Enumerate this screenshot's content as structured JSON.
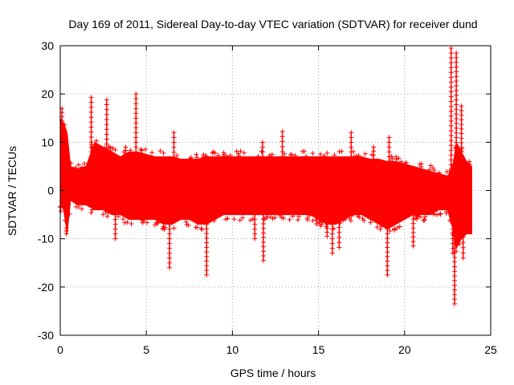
{
  "chart_data": {
    "type": "scatter",
    "title": "Day 169 of 2011, Sidereal Day-to-day VTEC variation (SDTVAR) for receiver dund",
    "xlabel": "GPS time / hours",
    "ylabel": "SDTVAR / TECUs",
    "xlim": [
      0,
      25
    ],
    "ylim": [
      -30,
      30
    ],
    "xticks": [
      0,
      5,
      10,
      15,
      20,
      25
    ],
    "yticks": [
      -30,
      -20,
      -10,
      0,
      10,
      20,
      30
    ],
    "grid": true,
    "marker": "+",
    "color": "#ff0000",
    "series": [
      {
        "name": "SDTVAR",
        "band": {
          "x": [
            0.0,
            0.2,
            0.4,
            0.6,
            1.0,
            1.5,
            2.0,
            2.5,
            3.0,
            3.5,
            4.0,
            4.5,
            5.0,
            5.5,
            6.0,
            6.5,
            7.0,
            7.5,
            8.0,
            8.5,
            9.0,
            9.5,
            10.0,
            10.5,
            11.0,
            11.5,
            12.0,
            12.5,
            13.0,
            13.5,
            14.0,
            14.5,
            15.0,
            15.5,
            16.0,
            16.5,
            17.0,
            17.5,
            18.0,
            18.5,
            19.0,
            19.5,
            20.0,
            20.5,
            21.0,
            21.5,
            22.0,
            22.5,
            22.8,
            23.0,
            23.3,
            23.6,
            23.9
          ],
          "upper": [
            15,
            14,
            12,
            5,
            4.5,
            5,
            10,
            9,
            8,
            7,
            8,
            8,
            7.5,
            7,
            7,
            7,
            6.5,
            6.5,
            6.5,
            7,
            7,
            7,
            7,
            7,
            7,
            7,
            7,
            7,
            7,
            7,
            7,
            7,
            7,
            7,
            7,
            7,
            7,
            7,
            6.5,
            6.5,
            6,
            6,
            5.5,
            5,
            4.5,
            4,
            3.5,
            3,
            5,
            10,
            8,
            6,
            5
          ],
          "lower": [
            -3,
            -4,
            -9,
            -2,
            -3,
            -3,
            -4,
            -4,
            -5,
            -5,
            -6,
            -6,
            -6,
            -6,
            -7,
            -7,
            -6,
            -6,
            -7,
            -7,
            -6,
            -5,
            -5,
            -5,
            -5,
            -5,
            -5,
            -5,
            -5,
            -5,
            -5,
            -5,
            -6,
            -7,
            -7,
            -6,
            -5,
            -5,
            -6,
            -7,
            -8,
            -7,
            -6,
            -5,
            -5,
            -5,
            -4,
            -4,
            -8,
            -12,
            -10,
            -9,
            -9
          ]
        },
        "spikes": [
          {
            "x": 0.1,
            "y": 17
          },
          {
            "x": 0.35,
            "y": -9
          },
          {
            "x": 1.8,
            "y": 19.3
          },
          {
            "x": 2.7,
            "y": 18.8
          },
          {
            "x": 3.2,
            "y": -10
          },
          {
            "x": 3.8,
            "y": 9
          },
          {
            "x": 4.4,
            "y": 20
          },
          {
            "x": 6.35,
            "y": -16
          },
          {
            "x": 6.6,
            "y": 12
          },
          {
            "x": 8.5,
            "y": -17.5
          },
          {
            "x": 11.3,
            "y": -10
          },
          {
            "x": 11.8,
            "y": -14.5
          },
          {
            "x": 11.75,
            "y": 10
          },
          {
            "x": 12.9,
            "y": 12.2
          },
          {
            "x": 15.5,
            "y": -9.5
          },
          {
            "x": 15.8,
            "y": -13
          },
          {
            "x": 16.2,
            "y": -11.8
          },
          {
            "x": 16.9,
            "y": 12
          },
          {
            "x": 18.2,
            "y": 9
          },
          {
            "x": 19.0,
            "y": -17.5
          },
          {
            "x": 19.1,
            "y": 11
          },
          {
            "x": 20.5,
            "y": -11.5
          },
          {
            "x": 22.7,
            "y": 29.5
          },
          {
            "x": 22.8,
            "y": -13
          },
          {
            "x": 22.9,
            "y": -23.5
          },
          {
            "x": 23.0,
            "y": 28.5
          },
          {
            "x": 23.3,
            "y": 17.5
          },
          {
            "x": 23.4,
            "y": -14
          }
        ]
      }
    ]
  }
}
